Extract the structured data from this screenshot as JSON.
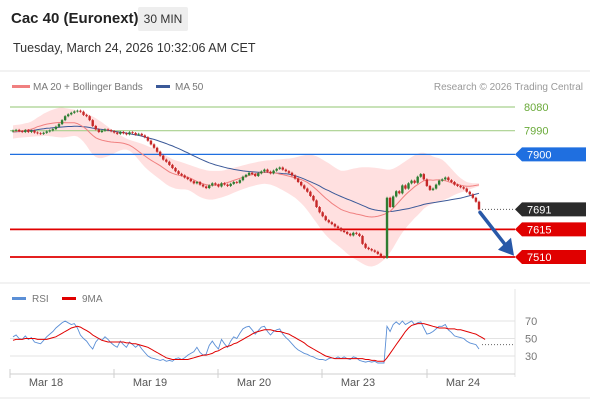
{
  "header": {
    "instrument": "Cac 40 (Euronext)",
    "timeframe": "30 MIN",
    "datetime": "Tuesday, March 24, 2026 10:32:06 AM CET"
  },
  "legend": {
    "ma20_bb": "MA 20 + Bollinger Bands",
    "ma50": "MA 50",
    "credit": "Research © 2026 Trading Central",
    "rsi": "RSI",
    "ma9": "9MA"
  },
  "colors": {
    "up": "#2e7d32",
    "down": "#c62828",
    "bollinger": "#ffd6d6",
    "ma20": "#f08080",
    "ma50": "#3b5998",
    "resistance_green": "#a8d08d",
    "pivot_blue": "#1f6fe0",
    "support_red": "#e00000",
    "current_price": "#2b2b2b",
    "rsi_line": "#5b8fd6",
    "rsi_ma": "#e00000",
    "arrow": "#2858a8"
  },
  "chart_data": [
    {
      "type": "candlestick",
      "x_ticks": [
        "Mar 18",
        "Mar 19",
        "Mar 20",
        "Mar 23",
        "Mar 24"
      ],
      "ylim": [
        7490,
        8100
      ],
      "levels": [
        {
          "label": "8080",
          "value": 8080,
          "kind": "resistance"
        },
        {
          "label": "7990",
          "value": 7990,
          "kind": "resistance"
        },
        {
          "label": "7900",
          "value": 7900,
          "kind": "pivot"
        },
        {
          "label": "7691",
          "value": 7691,
          "kind": "last"
        },
        {
          "label": "7615",
          "value": 7615,
          "kind": "support"
        },
        {
          "label": "7510",
          "value": 7510,
          "kind": "support"
        }
      ],
      "close": [
        7990,
        7993,
        7988,
        7985,
        7992,
        7985,
        7990,
        7983,
        7980,
        7978,
        7982,
        7987,
        7991,
        7996,
        8005,
        8015,
        8030,
        8045,
        8052,
        8058,
        8063,
        8066,
        8062,
        8050,
        8045,
        8030,
        8008,
        7995,
        7985,
        7990,
        7995,
        7992,
        7988,
        7983,
        7978,
        7985,
        7980,
        7976,
        7984,
        7981,
        7975,
        7978,
        7972,
        7965,
        7952,
        7938,
        7925,
        7910,
        7895,
        7880,
        7872,
        7860,
        7848,
        7836,
        7826,
        7820,
        7812,
        7806,
        7798,
        7790,
        7795,
        7785,
        7778,
        7772,
        7782,
        7790,
        7785,
        7778,
        7790,
        7785,
        7780,
        7788,
        7795,
        7792,
        7802,
        7815,
        7822,
        7830,
        7825,
        7818,
        7828,
        7835,
        7842,
        7834,
        7828,
        7838,
        7845,
        7850,
        7842,
        7836,
        7830,
        7820,
        7808,
        7795,
        7782,
        7770,
        7758,
        7742,
        7725,
        7700,
        7680,
        7665,
        7650,
        7642,
        7635,
        7626,
        7620,
        7610,
        7605,
        7598,
        7592,
        7602,
        7598,
        7590,
        7560,
        7545,
        7540,
        7535,
        7530,
        7522,
        7512,
        7507,
        7735,
        7700,
        7740,
        7760,
        7752,
        7782,
        7770,
        7790,
        7800,
        7792,
        7815,
        7825,
        7805,
        7780,
        7765,
        7770,
        7785,
        7800,
        7805,
        7812,
        7802,
        7795,
        7785,
        7780,
        7775,
        7770,
        7758,
        7748,
        7735,
        7720,
        7691
      ],
      "upper_band": [
        8010,
        8012,
        8013,
        8015,
        8018,
        8020,
        8025,
        8032,
        8040,
        8047,
        8055,
        8060,
        8066,
        8070,
        8074,
        8077,
        8078,
        8076,
        8074,
        8072,
        8070,
        8066,
        8063,
        8060,
        8056,
        8050,
        8044,
        8037,
        8030,
        8022,
        8013,
        8005,
        7996,
        7988,
        7980,
        7973,
        7966,
        7960,
        7955,
        7951,
        7948,
        7944,
        7940,
        7936,
        7931,
        7926,
        7921,
        7916,
        7910,
        7903,
        7895,
        7888,
        7882,
        7877,
        7874,
        7870,
        7866,
        7862,
        7858,
        7854,
        7850,
        7846,
        7843,
        7840,
        7838,
        7837,
        7837,
        7837,
        7838,
        7840,
        7843,
        7846,
        7849,
        7852,
        7855,
        7858,
        7861,
        7864,
        7867,
        7869,
        7872,
        7874,
        7876,
        7877,
        7878,
        7879,
        7880,
        7881,
        7882,
        7883,
        7884,
        7886,
        7888,
        7891,
        7894,
        7897,
        7900,
        7899,
        7897,
        7893,
        7887,
        7880,
        7873,
        7866,
        7858,
        7850,
        7843,
        7838,
        7838,
        7840,
        7843,
        7846,
        7848,
        7850,
        7851,
        7851,
        7851,
        7850,
        7849,
        7848,
        7846,
        7844,
        7842,
        7842,
        7845,
        7851,
        7858,
        7866,
        7874,
        7882,
        7890,
        7897,
        7902,
        7906,
        7906,
        7903,
        7898,
        7892,
        7888,
        7885,
        7880,
        7870,
        7858,
        7845,
        7832,
        7820,
        7810,
        7802,
        7795,
        7792,
        7790,
        7790,
        7790
      ],
      "lower_band": [
        7960,
        7962,
        7963,
        7964,
        7965,
        7966,
        7967,
        7968,
        7969,
        7969,
        7970,
        7970,
        7969,
        7968,
        7966,
        7965,
        7964,
        7965,
        7967,
        7969,
        7970,
        7968,
        7960,
        7948,
        7933,
        7916,
        7900,
        7890,
        7886,
        7886,
        7889,
        7893,
        7898,
        7904,
        7910,
        7915,
        7918,
        7918,
        7914,
        7905,
        7893,
        7879,
        7865,
        7852,
        7841,
        7831,
        7822,
        7813,
        7804,
        7795,
        7786,
        7779,
        7774,
        7770,
        7768,
        7767,
        7767,
        7765,
        7760,
        7753,
        7745,
        7738,
        7733,
        7730,
        7728,
        7728,
        7730,
        7733,
        7736,
        7740,
        7744,
        7749,
        7754,
        7759,
        7764,
        7768,
        7772,
        7776,
        7779,
        7782,
        7785,
        7787,
        7788,
        7787,
        7785,
        7781,
        7776,
        7770,
        7764,
        7757,
        7750,
        7743,
        7735,
        7725,
        7714,
        7702,
        7688,
        7672,
        7656,
        7640,
        7623,
        7608,
        7594,
        7582,
        7571,
        7562,
        7553,
        7544,
        7534,
        7523,
        7514,
        7506,
        7499,
        7492,
        7485,
        7479,
        7475,
        7474,
        7477,
        7482,
        7490,
        7500,
        7512,
        7527,
        7545,
        7565,
        7585,
        7603,
        7618,
        7632,
        7645,
        7658,
        7669,
        7681,
        7693,
        7702,
        7708,
        7713,
        7718,
        7721,
        7725,
        7729,
        7734,
        7740,
        7746,
        7751,
        7755,
        7759,
        7763,
        7767,
        7771,
        7775,
        7779
      ],
      "ma20": [
        7985,
        7987,
        7988,
        7990,
        7992,
        7993,
        7996,
        8000,
        8005,
        8008,
        8012,
        8015,
        8017,
        8019,
        8020,
        8021,
        8021,
        8020,
        8020,
        8020,
        8020,
        8017,
        8011,
        8004,
        7995,
        7983,
        7972,
        7963,
        7958,
        7954,
        7951,
        7949,
        7947,
        7946,
        7945,
        7944,
        7942,
        7939,
        7935,
        7928,
        7920,
        7911,
        7902,
        7894,
        7886,
        7878,
        7871,
        7864,
        7857,
        7849,
        7841,
        7833,
        7828,
        7824,
        7821,
        7818,
        7816,
        7813,
        7809,
        7803,
        7797,
        7792,
        7788,
        7785,
        7783,
        7782,
        7783,
        7785,
        7787,
        7790,
        7793,
        7797,
        7801,
        7805,
        7809,
        7813,
        7816,
        7820,
        7823,
        7825,
        7828,
        7830,
        7832,
        7832,
        7831,
        7830,
        7828,
        7825,
        7823,
        7820,
        7817,
        7814,
        7811,
        7808,
        7804,
        7799,
        7794,
        7785,
        7776,
        7766,
        7755,
        7744,
        7733,
        7724,
        7714,
        7706,
        7698,
        7691,
        7686,
        7682,
        7678,
        7676,
        7673,
        7671,
        7668,
        7665,
        7663,
        7662,
        7663,
        7665,
        7668,
        7672,
        7677,
        7684,
        7695,
        7708,
        7721,
        7734,
        7746,
        7757,
        7767,
        7777,
        7785,
        7793,
        7800,
        7802,
        7803,
        7802,
        7803,
        7803,
        7802,
        7800,
        7796,
        7792,
        7789,
        7786,
        7783,
        7780,
        7779,
        7779,
        7780,
        7782,
        7784
      ],
      "ma50": [
        7985,
        7986,
        7987,
        7988,
        7989,
        7990,
        7991,
        7992,
        7994,
        7996,
        7997,
        7999,
        8000,
        8001,
        8002,
        8003,
        8004,
        8005,
        8006,
        8006,
        8007,
        8007,
        8006,
        8005,
        8004,
        8002,
        8000,
        7998,
        7996,
        7995,
        7993,
        7991,
        7990,
        7988,
        7986,
        7984,
        7983,
        7981,
        7979,
        7976,
        7974,
        7972,
        7969,
        7966,
        7963,
        7960,
        7957,
        7953,
        7949,
        7945,
        7941,
        7936,
        7932,
        7927,
        7922,
        7917,
        7911,
        7906,
        7900,
        7894,
        7889,
        7883,
        7878,
        7873,
        7868,
        7864,
        7860,
        7857,
        7854,
        7851,
        7848,
        7846,
        7843,
        7841,
        7839,
        7837,
        7836,
        7835,
        7834,
        7833,
        7832,
        7832,
        7831,
        7831,
        7830,
        7830,
        7829,
        7828,
        7827,
        7826,
        7825,
        7822,
        7819,
        7815,
        7811,
        7806,
        7801,
        7796,
        7791,
        7786,
        7780,
        7773,
        7767,
        7762,
        7756,
        7750,
        7745,
        7740,
        7735,
        7730,
        7726,
        7721,
        7716,
        7711,
        7706,
        7701,
        7696,
        7692,
        7689,
        7687,
        7686,
        7684,
        7683,
        7683,
        7684,
        7686,
        7688,
        7690,
        7692,
        7694,
        7697,
        7700,
        7703,
        7706,
        7710,
        7712,
        7714,
        7716,
        7718,
        7720,
        7722,
        7724,
        7726,
        7728,
        7730,
        7732,
        7734,
        7737,
        7740,
        7743,
        7746,
        7749,
        7752
      ]
    },
    {
      "type": "line",
      "name": "RSI",
      "ylim": [
        20,
        80
      ],
      "y_ticks": [
        70,
        50,
        30
      ],
      "rsi": [
        52,
        54,
        50,
        49,
        53,
        49,
        51,
        46,
        45,
        44,
        48,
        52,
        55,
        58,
        62,
        65,
        68,
        70,
        68,
        66,
        67,
        62,
        54,
        50,
        47,
        42,
        38,
        46,
        50,
        48,
        52,
        49,
        45,
        42,
        40,
        47,
        43,
        40,
        46,
        43,
        40,
        43,
        38,
        34,
        30,
        28,
        27,
        26,
        25,
        26,
        24,
        25,
        24,
        27,
        28,
        26,
        28,
        31,
        33,
        35,
        40,
        34,
        31,
        32,
        42,
        47,
        42,
        38,
        49,
        44,
        40,
        47,
        52,
        50,
        56,
        61,
        63,
        64,
        60,
        55,
        59,
        63,
        64,
        58,
        54,
        58,
        60,
        61,
        55,
        51,
        48,
        44,
        40,
        37,
        35,
        33,
        32,
        30,
        29,
        27,
        26,
        26,
        25,
        27,
        28,
        27,
        29,
        27,
        29,
        27,
        26,
        29,
        28,
        25,
        24,
        23,
        24,
        23,
        24,
        22,
        22,
        22,
        64,
        58,
        66,
        69,
        66,
        70,
        66,
        68,
        70,
        66,
        68,
        69,
        62,
        55,
        56,
        58,
        61,
        64,
        64,
        66,
        60,
        57,
        53,
        52,
        51,
        50,
        47,
        45,
        44,
        43,
        38
      ],
      "rsi_ma": [
        48,
        49,
        49,
        49,
        50,
        50,
        50,
        50,
        49,
        49,
        49,
        49,
        50,
        51,
        52,
        54,
        56,
        58,
        60,
        62,
        63,
        64,
        63,
        61,
        59,
        57,
        54,
        52,
        50,
        48,
        47,
        46,
        46,
        46,
        46,
        46,
        46,
        45,
        45,
        44,
        44,
        43,
        42,
        41,
        40,
        38,
        36,
        34,
        32,
        30,
        28,
        27,
        26,
        26,
        26,
        26,
        26,
        26,
        27,
        28,
        29,
        30,
        31,
        31,
        32,
        33,
        35,
        36,
        38,
        40,
        41,
        42,
        44,
        45,
        47,
        49,
        51,
        53,
        55,
        57,
        58,
        59,
        60,
        60,
        60,
        59,
        58,
        58,
        57,
        56,
        55,
        53,
        51,
        49,
        47,
        45,
        42,
        40,
        38,
        36,
        34,
        32,
        30,
        29,
        28,
        27,
        27,
        27,
        27,
        27,
        27,
        27,
        27,
        27,
        27,
        26,
        26,
        25,
        25,
        24,
        24,
        24,
        28,
        33,
        38,
        43,
        48,
        53,
        58,
        62,
        65,
        66,
        67,
        67,
        67,
        66,
        65,
        64,
        63,
        62,
        62,
        62,
        61,
        61,
        61,
        60,
        60,
        59,
        58,
        57,
        56,
        55,
        53,
        51,
        49
      ]
    }
  ]
}
